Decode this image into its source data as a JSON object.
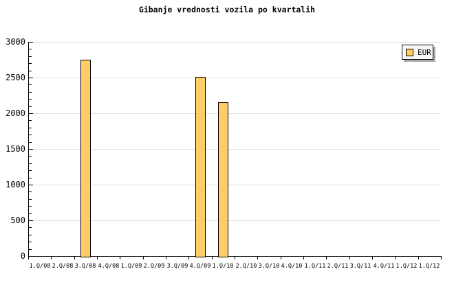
{
  "chart_data": {
    "type": "bar",
    "title": "Gibanje vrednosti vozila po kvartalih",
    "categories": [
      "1.Q/08",
      "2.Q/08",
      "3.Q/08",
      "4.Q/08",
      "1.Q/09",
      "2.Q/09",
      "3.Q/09",
      "4.Q/09",
      "1.Q/10",
      "2.Q/10",
      "3.Q/10",
      "4.Q/10",
      "1.Q/11",
      "2.Q/11",
      "3.Q/11",
      "4.Q/11",
      "1.Q/12",
      "1.Q/12"
    ],
    "series": [
      {
        "name": "EUR",
        "values": [
          null,
          null,
          2750,
          null,
          null,
          null,
          null,
          2510,
          2150,
          null,
          null,
          null,
          null,
          null,
          null,
          null,
          null,
          null
        ]
      }
    ],
    "xlabel": "",
    "ylabel": "",
    "ylim": [
      0,
      3000
    ],
    "y_major_step": 500,
    "y_minor_step": 100,
    "y_tick_labels": [
      "0",
      "500",
      "1000",
      "1500",
      "2000",
      "2500",
      "3000"
    ],
    "grid": "horizontal-major-only",
    "legend_position": "top-right"
  },
  "legend": {
    "label": "EUR"
  },
  "colors": {
    "background": "#FFFFFF",
    "text": "#000000",
    "axis": "#000000",
    "grid": "#E0E0E0",
    "bar_fill": "#FFCC66",
    "bar_border": "#000000",
    "legend_bg": "#F7F7F7",
    "legend_border": "#000000",
    "legend_shadow": "#A9A9A9",
    "legend_swatch": "#FFCC66"
  }
}
